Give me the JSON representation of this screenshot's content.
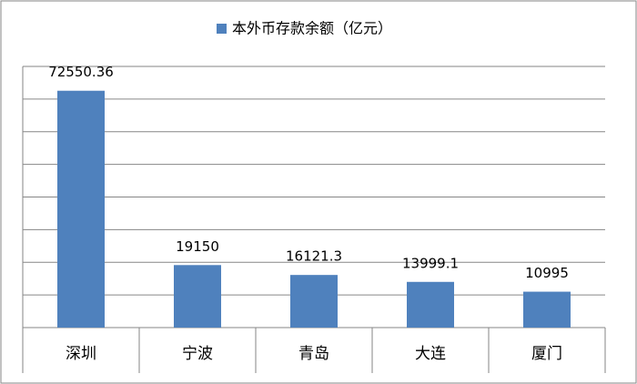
{
  "chart_data": {
    "type": "bar",
    "series": [
      {
        "name": "本外币存款余额（亿元）",
        "color": "#4f81bd",
        "values": [
          72550.36,
          19150,
          16121.3,
          13999.1,
          10995
        ]
      }
    ],
    "categories": [
      "深圳",
      "宁波",
      "青岛",
      "大连",
      "厦门"
    ],
    "ylim": [
      0,
      80000
    ],
    "yticks": [
      0,
      10000,
      20000,
      30000,
      40000,
      50000,
      60000,
      70000,
      80000
    ],
    "grid": true,
    "legend": "top"
  }
}
